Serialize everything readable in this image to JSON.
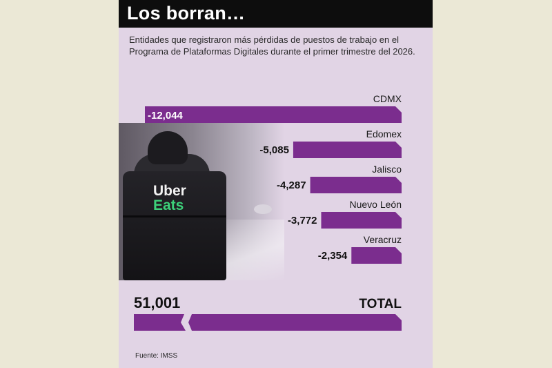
{
  "header": {
    "title": "Los borran…",
    "subtitle": "Entidades que registraron más pérdidas de puestos de trabajo en el Programa de Plataformas Digitales durante el primer trimestre del 2026."
  },
  "photo": {
    "logo_line1": "Uber",
    "logo_line2": "Eats"
  },
  "chart_data": {
    "type": "bar",
    "orientation": "horizontal",
    "categories": [
      "CDMX",
      "Edomex",
      "Jalisco",
      "Nuevo León",
      "Veracruz"
    ],
    "values": [
      -12044,
      -5085,
      -4287,
      -3772,
      -2354
    ],
    "value_labels": [
      "-12,044",
      "-5,085",
      "-4,287",
      "-3,772",
      "-2,354"
    ],
    "total": {
      "value": 51001,
      "value_label": "51,001",
      "label": "TOTAL"
    },
    "bar_color": "#7b2d8e"
  },
  "footer": {
    "source": "Fuente: IMSS"
  }
}
